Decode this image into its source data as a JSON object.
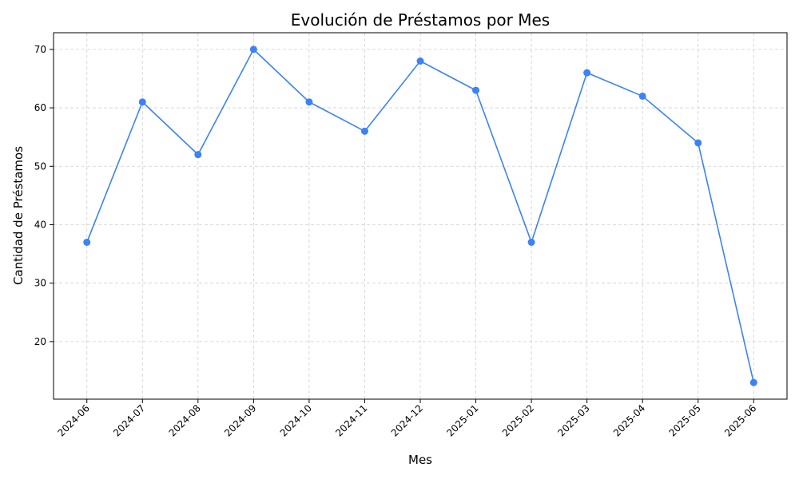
{
  "chart_data": {
    "type": "line",
    "title": "Evolución de Préstamos por Mes",
    "xlabel": "Mes",
    "ylabel": "Cantidad de Préstamos",
    "categories": [
      "2024-06",
      "2024-07",
      "2024-08",
      "2024-09",
      "2024-10",
      "2024-11",
      "2024-12",
      "2025-01",
      "2025-02",
      "2025-03",
      "2025-04",
      "2025-05",
      "2025-06"
    ],
    "values": [
      37,
      61,
      52,
      70,
      61,
      56,
      68,
      63,
      37,
      66,
      62,
      54,
      13
    ],
    "yticks": [
      20,
      30,
      40,
      50,
      60,
      70
    ],
    "ylim": [
      10.15,
      72.85
    ],
    "grid": true,
    "line_color": "#3b82f6"
  }
}
